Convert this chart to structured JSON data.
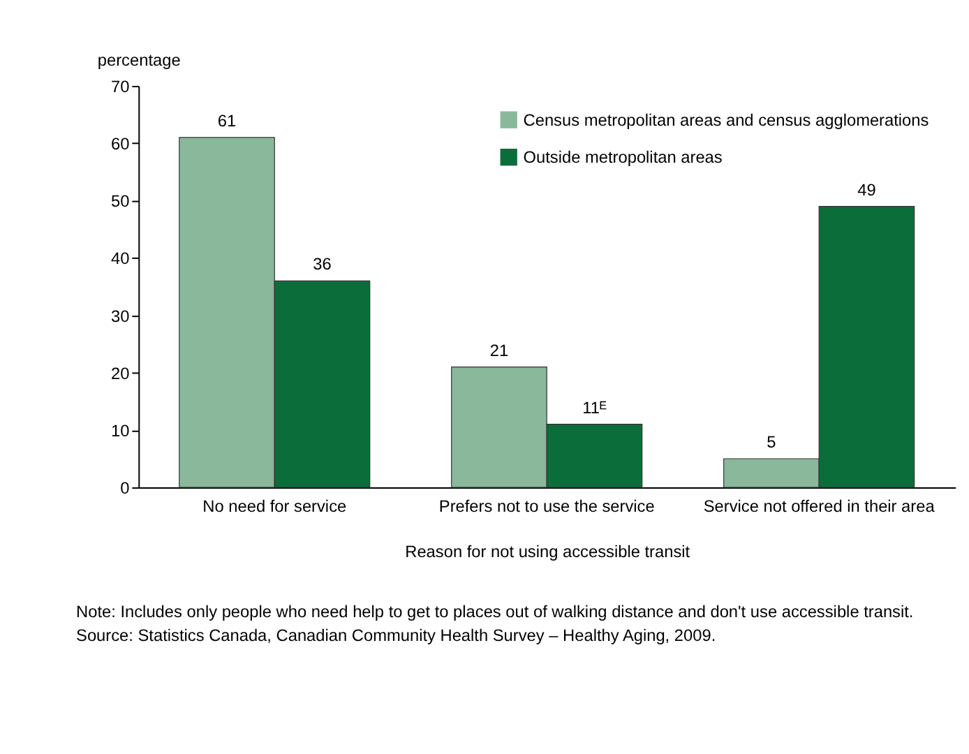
{
  "chart_data": {
    "type": "bar",
    "ylabel": "percentage",
    "xlabel": "Reason for not using accessible transit",
    "categories": [
      "No need for service",
      "Prefers not to use the service",
      "Service not offered in their area"
    ],
    "series": [
      {
        "name": "Census metropolitan areas and census agglomerations",
        "color": "#8ab89a",
        "values": [
          61,
          21,
          5
        ],
        "value_labels": [
          "61",
          "21",
          "5"
        ]
      },
      {
        "name": "Outside metropolitan areas",
        "color": "#0b6e3a",
        "values": [
          36,
          11,
          49
        ],
        "value_labels": [
          "36",
          "11ᴱ",
          "49"
        ]
      }
    ],
    "ylim": [
      0,
      70
    ],
    "yticks": [
      0,
      10,
      20,
      30,
      40,
      50,
      60,
      70
    ],
    "grid": false,
    "legend": "top right",
    "annotations": [
      "Note: Includes only people who need help to get to places out of walking distance and don't use accessible transit.",
      "Source: Statistics Canada, Canadian Community Health Survey – Healthy Aging, 2009."
    ]
  }
}
